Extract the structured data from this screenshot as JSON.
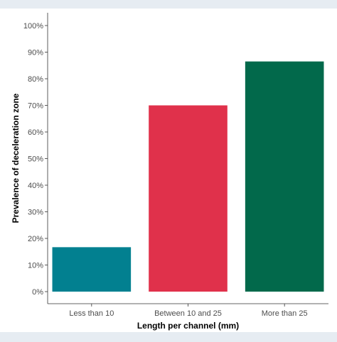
{
  "chart_data": {
    "type": "bar",
    "title": "",
    "xlabel": "Length per channel (mm)",
    "ylabel": "Prevalence of deceleration zone",
    "categories": [
      "Less than 10",
      "Between 10 and 25",
      "More than 25"
    ],
    "values": [
      16.7,
      70.0,
      86.5
    ],
    "colors": [
      "#028090",
      "#E0314B",
      "#02694B"
    ],
    "ylim": [
      0,
      100
    ],
    "yticks": [
      0,
      10,
      20,
      30,
      40,
      50,
      60,
      70,
      80,
      90,
      100
    ],
    "ytick_labels": [
      "0%",
      "10%",
      "20%",
      "30%",
      "40%",
      "50%",
      "60%",
      "70%",
      "80%",
      "90%",
      "100%"
    ],
    "grid": false,
    "legend": "none"
  }
}
